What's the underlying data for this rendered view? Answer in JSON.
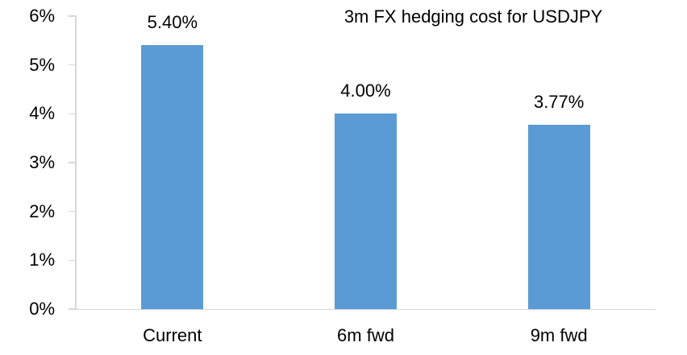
{
  "chart_data": {
    "type": "bar",
    "title": "3m FX hedging cost for USDJPY",
    "categories": [
      "Current",
      "6m fwd",
      "9m fwd"
    ],
    "values": [
      5.4,
      4.0,
      3.77
    ],
    "value_labels": [
      "5.40%",
      "4.00%",
      "3.77%"
    ],
    "ylim": [
      0,
      6
    ],
    "ytick_step": 1,
    "ytick_labels": [
      "0%",
      "1%",
      "2%",
      "3%",
      "4%",
      "5%",
      "6%"
    ],
    "xlabel": "",
    "ylabel": "",
    "legend": "none",
    "grid": "off",
    "bar_color": "#5B9BD5",
    "axis_color": "#D6D6D6",
    "text_color": "#000000"
  }
}
